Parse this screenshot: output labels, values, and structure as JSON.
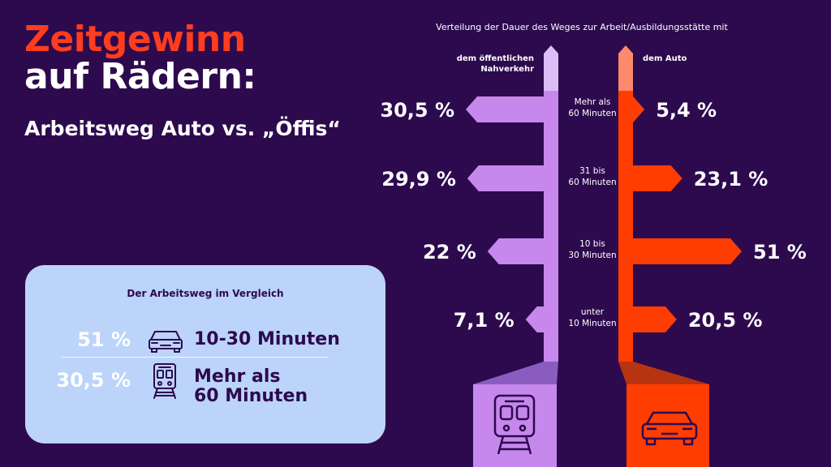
{
  "headline": {
    "line1": "Zeitgewinn",
    "line2": "auf Rädern:",
    "subtitle": "Arbeitsweg Auto vs. „Öffis“"
  },
  "comparison_card": {
    "title": "Der Arbeitsweg im Vergleich",
    "rows": [
      {
        "value": "51 %",
        "icon": "car-icon",
        "label": "10-30 Minuten"
      },
      {
        "value": "30,5 %",
        "icon": "train-icon",
        "label_line1": "Mehr als",
        "label_line2": "60 Minuten"
      }
    ]
  },
  "colors": {
    "background": "#2d0a4e",
    "public_transport": "#c688ec",
    "public_transport_light": "#dcbdf6",
    "car": "#ff3d00",
    "car_light": "#ff8a6b",
    "card": "#bcd4fa"
  },
  "chart_data": {
    "type": "bar",
    "title": "Verteilung der Dauer des Weges zur Arbeit/Ausbildungsstätte mit",
    "categories": [
      [
        "Mehr als",
        "60 Minuten"
      ],
      [
        "31 bis",
        "60 Minuten"
      ],
      [
        "10 bis",
        "30 Minuten"
      ],
      [
        "unter",
        "10 Minuten"
      ]
    ],
    "series": [
      {
        "name": "dem öffentlichen Nahverkehr",
        "name_lines": [
          "dem öffentlichen",
          "Nahverkehr"
        ],
        "values": [
          30.5,
          29.9,
          22,
          7.1
        ],
        "labels": [
          "30,5  %",
          "29,9  %",
          "22  %",
          "7,1  %"
        ]
      },
      {
        "name": "dem Auto",
        "name_lines": [
          "dem Auto"
        ],
        "values": [
          5.4,
          23.1,
          51,
          20.5
        ],
        "labels": [
          "5,4  %",
          "23,1  %",
          "51  %",
          "20,5  %"
        ]
      }
    ],
    "unit": "%"
  }
}
